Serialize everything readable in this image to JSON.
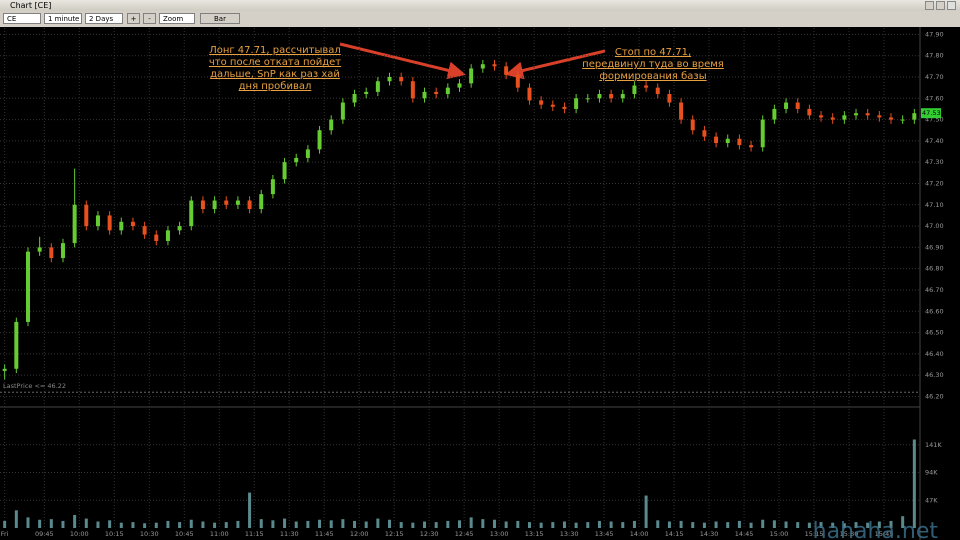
{
  "window": {
    "title": "Chart [CE]",
    "symbol": "CE",
    "interval": "1 minute",
    "range": "2 Days",
    "zoom_in": "+",
    "zoom_out": "-",
    "zoom": "Zoom",
    "style": "Bar",
    "watermark": "hahaha.net"
  },
  "chart_data": {
    "type": "candlestick",
    "x": [
      2,
      7,
      12,
      17,
      22,
      27,
      32,
      37,
      42,
      47,
      52,
      57,
      62,
      67,
      72,
      77,
      82,
      87,
      92,
      97,
      102,
      107,
      112,
      117,
      122,
      127,
      132,
      137,
      142,
      147,
      152,
      157,
      162,
      167,
      172,
      177,
      182,
      187,
      192,
      197,
      202,
      207,
      212,
      217,
      222,
      227,
      232,
      237,
      242,
      247,
      252,
      257,
      262,
      267,
      272,
      277,
      282,
      287,
      292,
      297,
      302,
      307,
      312,
      317,
      322,
      327,
      332,
      337,
      342,
      347,
      352,
      357,
      362,
      367,
      372,
      377,
      382,
      387,
      392
    ],
    "open": [
      46.32,
      46.33,
      46.55,
      46.88,
      46.9,
      46.85,
      46.92,
      47.1,
      47.0,
      47.05,
      46.98,
      47.02,
      47.0,
      46.96,
      46.93,
      46.98,
      47.0,
      47.12,
      47.08,
      47.12,
      47.1,
      47.12,
      47.08,
      47.15,
      47.22,
      47.3,
      47.32,
      47.36,
      47.45,
      47.5,
      47.58,
      47.62,
      47.63,
      47.68,
      47.7,
      47.68,
      47.6,
      47.63,
      47.62,
      47.65,
      47.67,
      47.74,
      47.76,
      47.75,
      47.71,
      47.65,
      47.59,
      47.57,
      47.56,
      47.55,
      47.6,
      47.6,
      47.62,
      47.6,
      47.62,
      47.66,
      47.65,
      47.62,
      47.58,
      47.5,
      47.45,
      47.42,
      47.39,
      47.41,
      47.38,
      47.37,
      47.5,
      47.55,
      47.58,
      47.55,
      47.52,
      47.51,
      47.5,
      47.52,
      47.53,
      47.52,
      47.51,
      47.5,
      47.5
    ],
    "high": [
      46.35,
      46.57,
      46.9,
      46.95,
      46.92,
      46.94,
      47.27,
      47.12,
      47.07,
      47.07,
      47.04,
      47.04,
      47.02,
      46.98,
      47.0,
      47.02,
      47.14,
      47.14,
      47.14,
      47.14,
      47.14,
      47.14,
      47.17,
      47.24,
      47.32,
      47.34,
      47.38,
      47.47,
      47.52,
      47.6,
      47.64,
      47.65,
      47.7,
      47.72,
      47.72,
      47.7,
      47.65,
      47.65,
      47.67,
      47.69,
      47.76,
      47.78,
      47.78,
      47.77,
      47.73,
      47.67,
      47.61,
      47.59,
      47.58,
      47.62,
      47.62,
      47.64,
      47.64,
      47.64,
      47.68,
      47.68,
      47.67,
      47.64,
      47.6,
      47.52,
      47.47,
      47.44,
      47.43,
      47.43,
      47.4,
      47.52,
      47.57,
      47.6,
      47.6,
      47.57,
      47.54,
      47.53,
      47.54,
      47.55,
      47.55,
      47.54,
      47.53,
      47.52,
      47.55
    ],
    "low": [
      46.28,
      46.31,
      46.53,
      46.86,
      46.83,
      46.83,
      46.9,
      46.98,
      46.98,
      46.96,
      46.96,
      46.98,
      46.94,
      46.91,
      46.91,
      46.96,
      46.98,
      47.06,
      47.06,
      47.08,
      47.08,
      47.06,
      47.06,
      47.13,
      47.2,
      47.28,
      47.3,
      47.34,
      47.43,
      47.48,
      47.56,
      47.6,
      47.61,
      47.66,
      47.66,
      47.58,
      47.58,
      47.6,
      47.6,
      47.63,
      47.65,
      47.72,
      47.73,
      47.69,
      47.63,
      47.57,
      47.55,
      47.54,
      47.53,
      47.53,
      47.58,
      47.58,
      47.58,
      47.58,
      47.6,
      47.63,
      47.6,
      47.56,
      47.48,
      47.43,
      47.4,
      47.37,
      47.37,
      47.36,
      47.35,
      47.35,
      47.48,
      47.53,
      47.53,
      47.5,
      47.49,
      47.48,
      47.48,
      47.5,
      47.5,
      47.49,
      47.48,
      47.48,
      47.48
    ],
    "close": [
      46.33,
      46.55,
      46.88,
      46.9,
      46.85,
      46.92,
      47.1,
      47.0,
      47.05,
      46.98,
      47.02,
      47.0,
      46.96,
      46.93,
      46.98,
      47.0,
      47.12,
      47.08,
      47.12,
      47.1,
      47.12,
      47.08,
      47.15,
      47.22,
      47.3,
      47.32,
      47.36,
      47.45,
      47.5,
      47.58,
      47.62,
      47.63,
      47.68,
      47.7,
      47.68,
      47.6,
      47.63,
      47.62,
      47.65,
      47.67,
      47.74,
      47.76,
      47.75,
      47.71,
      47.65,
      47.59,
      47.57,
      47.56,
      47.55,
      47.6,
      47.6,
      47.62,
      47.6,
      47.62,
      47.66,
      47.65,
      47.62,
      47.58,
      47.5,
      47.45,
      47.42,
      47.39,
      47.41,
      47.38,
      47.37,
      47.5,
      47.55,
      47.58,
      47.55,
      47.52,
      47.51,
      47.5,
      47.52,
      47.53,
      47.52,
      47.51,
      47.5,
      47.5,
      47.53
    ],
    "up_color": "#66cc33",
    "down_color": "#e8501e",
    "xlim": [
      0,
      394
    ],
    "xticks": [
      {
        "value": 2,
        "label": "Fri"
      },
      {
        "value": 19,
        "label": "09:45"
      },
      {
        "value": 34,
        "label": "10:00"
      },
      {
        "value": 49,
        "label": "10:15"
      },
      {
        "value": 64,
        "label": "10:30"
      },
      {
        "value": 79,
        "label": "10:45"
      },
      {
        "value": 94,
        "label": "11:00"
      },
      {
        "value": 109,
        "label": "11:15"
      },
      {
        "value": 124,
        "label": "11:30"
      },
      {
        "value": 139,
        "label": "11:45"
      },
      {
        "value": 154,
        "label": "12:00"
      },
      {
        "value": 169,
        "label": "12:15"
      },
      {
        "value": 184,
        "label": "12:30"
      },
      {
        "value": 199,
        "label": "12:45"
      },
      {
        "value": 214,
        "label": "13:00"
      },
      {
        "value": 229,
        "label": "13:15"
      },
      {
        "value": 244,
        "label": "13:30"
      },
      {
        "value": 259,
        "label": "13:45"
      },
      {
        "value": 274,
        "label": "14:00"
      },
      {
        "value": 289,
        "label": "14:15"
      },
      {
        "value": 304,
        "label": "14:30"
      },
      {
        "value": 319,
        "label": "14:45"
      },
      {
        "value": 334,
        "label": "15:00"
      },
      {
        "value": 349,
        "label": "15:15"
      },
      {
        "value": 364,
        "label": "15:30"
      },
      {
        "value": 379,
        "label": "15:45"
      }
    ],
    "ylim": [
      46.16,
      47.93
    ],
    "yticks": [
      {
        "value": 46.2,
        "label": "46.20"
      },
      {
        "value": 46.3,
        "label": "46.30"
      },
      {
        "value": 46.4,
        "label": "46.40"
      },
      {
        "value": 46.5,
        "label": "46.50"
      },
      {
        "value": 46.6,
        "label": "46.60"
      },
      {
        "value": 46.7,
        "label": "46.70"
      },
      {
        "value": 46.8,
        "label": "46.80"
      },
      {
        "value": 46.9,
        "label": "46.90"
      },
      {
        "value": 47.0,
        "label": "47.00"
      },
      {
        "value": 47.1,
        "label": "47.10"
      },
      {
        "value": 47.2,
        "label": "47.20"
      },
      {
        "value": 47.3,
        "label": "47.30"
      },
      {
        "value": 47.4,
        "label": "47.40"
      },
      {
        "value": 47.5,
        "label": "47.50"
      },
      {
        "value": 47.6,
        "label": "47.60"
      },
      {
        "value": 47.7,
        "label": "47.70"
      },
      {
        "value": 47.8,
        "label": "47.80"
      },
      {
        "value": 47.9,
        "label": "47.90"
      }
    ],
    "grid": true,
    "reference_line": {
      "value": 46.22,
      "label": "LastPrice <= 46.22"
    },
    "last_price": {
      "value": 47.53,
      "label": "47.53",
      "color": "#33cc33"
    },
    "annotations": [
      {
        "lines": [
          "Лонг 47.71, рассчитывал",
          "что после отката пойдет",
          "дальше, SnP как раз хай",
          "дня пробивал"
        ],
        "color": "#e8a040"
      },
      {
        "lines": [
          "Стоп по 47.71,",
          "передвинул туда во время",
          "формирования базы"
        ],
        "color": "#e8a040"
      }
    ],
    "volume": {
      "color": "#5a8a8e",
      "ylim": [
        0,
        200000
      ],
      "yticks": [
        {
          "value": 47000,
          "label": "47K"
        },
        {
          "value": 94000,
          "label": "94K"
        },
        {
          "value": 141000,
          "label": "141K"
        }
      ],
      "values": [
        12000,
        30000,
        18000,
        14000,
        15000,
        12000,
        22000,
        16000,
        11000,
        13000,
        9000,
        10000,
        8000,
        9000,
        12000,
        10000,
        14000,
        11000,
        9000,
        10000,
        12000,
        60000,
        15000,
        13000,
        16000,
        11000,
        12000,
        14000,
        13000,
        15000,
        12000,
        11000,
        16000,
        14000,
        10000,
        9000,
        11000,
        10000,
        12000,
        13000,
        18000,
        15000,
        14000,
        11000,
        12000,
        10000,
        9000,
        10000,
        11000,
        9000,
        10000,
        12000,
        11000,
        10000,
        12000,
        55000,
        13000,
        11000,
        12000,
        10000,
        9000,
        11000,
        10000,
        12000,
        9000,
        14000,
        13000,
        11000,
        10000,
        9000,
        10000,
        9000,
        8000,
        10000,
        9000,
        11000,
        12000,
        20000,
        150000
      ]
    }
  }
}
